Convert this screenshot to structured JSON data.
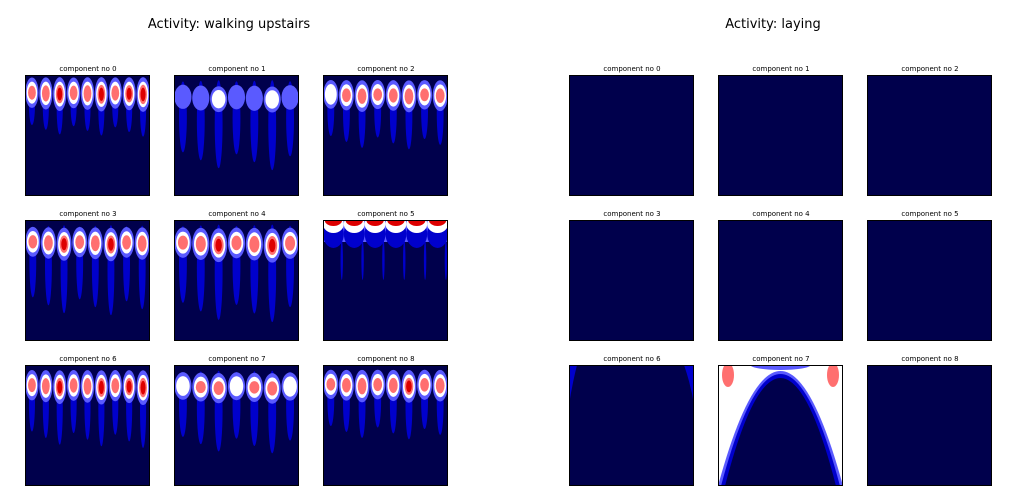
{
  "colors": {
    "background_fill": "#00004c",
    "level_1": "#0000cc",
    "level_2": "#5a5aff",
    "level_3": "#ffffff",
    "level_4": "#ff6f6f",
    "level_5": "#dd0000"
  },
  "chart_data": [
    {
      "type": "heatmap",
      "title": "Activity: walking upstairs",
      "colormap": "seismic",
      "panels": [
        {
          "title": "component no 0",
          "pattern": "lobes",
          "count": 9,
          "depth": 0.35,
          "strength": 1.0
        },
        {
          "title": "component no 1",
          "pattern": "lobes",
          "count": 7,
          "depth": 0.6,
          "strength": 0.45
        },
        {
          "title": "component no 2",
          "pattern": "lobes",
          "count": 8,
          "depth": 0.45,
          "strength": 0.85
        },
        {
          "title": "component no 3",
          "pattern": "lobes",
          "count": 8,
          "depth": 0.6,
          "strength": 0.95
        },
        {
          "title": "component no 4",
          "pattern": "lobes",
          "count": 7,
          "depth": 0.65,
          "strength": 1.0
        },
        {
          "title": "component no 5",
          "pattern": "top",
          "count": 6,
          "depth": 0.35,
          "strength": 0.95
        },
        {
          "title": "component no 6",
          "pattern": "lobes",
          "count": 9,
          "depth": 0.5,
          "strength": 1.0
        },
        {
          "title": "component no 7",
          "pattern": "lobes",
          "count": 7,
          "depth": 0.55,
          "strength": 0.75
        },
        {
          "title": "component no 8",
          "pattern": "lobes",
          "count": 8,
          "depth": 0.45,
          "strength": 0.9
        }
      ]
    },
    {
      "type": "heatmap",
      "title": "Activity: laying",
      "colormap": "seismic",
      "panels": [
        {
          "title": "component no 0",
          "pattern": "empty"
        },
        {
          "title": "component no 1",
          "pattern": "empty"
        },
        {
          "title": "component no 2",
          "pattern": "empty"
        },
        {
          "title": "component no 3",
          "pattern": "empty"
        },
        {
          "title": "component no 4",
          "pattern": "empty"
        },
        {
          "title": "component no 5",
          "pattern": "empty"
        },
        {
          "title": "component no 6",
          "pattern": "edges",
          "strength": 0.3
        },
        {
          "title": "component no 7",
          "pattern": "arch",
          "strength": 1.0
        },
        {
          "title": "component no 8",
          "pattern": "empty"
        }
      ]
    }
  ]
}
